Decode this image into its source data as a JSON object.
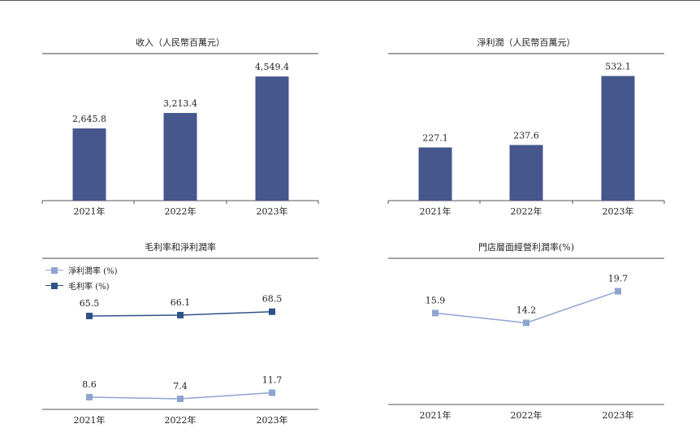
{
  "chart_data": [
    {
      "type": "bar",
      "title": "收入（人民幣百萬元）",
      "categories": [
        "2021年",
        "2022年",
        "2023年"
      ],
      "values": [
        2645.8,
        3213.4,
        4549.4
      ],
      "value_labels": [
        "2,645.8",
        "3,213.4",
        "4,549.4"
      ],
      "ylim": [
        0,
        5150
      ],
      "color": "#46578e"
    },
    {
      "type": "bar",
      "title": "淨利潤（人民幣百萬元）",
      "categories": [
        "2021年",
        "2022年",
        "2023年"
      ],
      "values": [
        227.1,
        237.6,
        532.1
      ],
      "value_labels": [
        "227.1",
        "237.6",
        "532.1"
      ],
      "ylim": [
        0,
        600
      ],
      "color": "#46578e"
    },
    {
      "type": "line",
      "title": "毛利率和淨利潤率",
      "categories": [
        "2021年",
        "2022年",
        "2023年"
      ],
      "ylim": [
        0,
        90
      ],
      "legend_position": "top-left",
      "series": [
        {
          "name": "淨利潤率 (%)",
          "values": [
            8.6,
            7.4,
            11.7
          ],
          "value_labels": [
            "8.6",
            "7.4",
            "11.7"
          ],
          "color": "#8fa4d0"
        },
        {
          "name": "毛利率 (%)",
          "values": [
            65.5,
            66.1,
            68.5
          ],
          "value_labels": [
            "65.5",
            "66.1",
            "68.5"
          ],
          "color": "#2f5288"
        }
      ]
    },
    {
      "type": "line",
      "title": "門店層面經營利潤率(%)",
      "categories": [
        "2021年",
        "2022年",
        "2023年"
      ],
      "ylim": [
        0,
        25
      ],
      "series": [
        {
          "values": [
            15.9,
            14.2,
            19.7
          ],
          "value_labels": [
            "15.9",
            "14.2",
            "19.7"
          ],
          "color": "#8fa4d0"
        }
      ]
    }
  ]
}
